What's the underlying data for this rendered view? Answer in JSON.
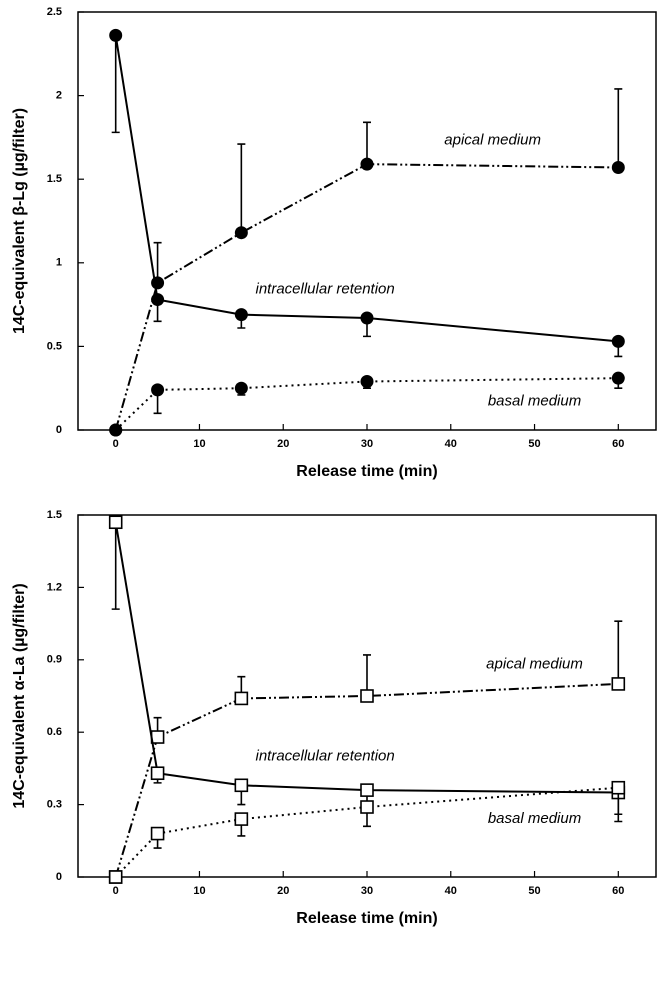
{
  "chart_data": [
    {
      "type": "line",
      "y_label": "14C-equivalent β-Lg (µg/filter)",
      "x_label": "Release time (min)",
      "x": [
        0,
        5,
        15,
        30,
        60
      ],
      "xlim": [
        -4.5,
        64.5
      ],
      "xticks": [
        0,
        10,
        20,
        30,
        40,
        50,
        60
      ],
      "ylim": [
        0,
        2.5
      ],
      "yticks": [
        0,
        0.5,
        1,
        1.5,
        2,
        2.5
      ],
      "marker": "circle-filled",
      "series": [
        {
          "name": "apical medium",
          "color": "#000000",
          "dash": "dash-dot-dot",
          "error_direction": "up",
          "values": [
            0,
            0.88,
            1.18,
            1.59,
            1.57
          ],
          "errors": [
            null,
            0.24,
            0.53,
            0.25,
            0.47
          ]
        },
        {
          "name": "intracellular retention",
          "color": "#000000",
          "dash": "solid",
          "error_direction": "down",
          "values": [
            2.36,
            0.78,
            0.69,
            0.67,
            0.53
          ],
          "errors": [
            0.58,
            0.13,
            0.08,
            0.11,
            0.09
          ]
        },
        {
          "name": "basal medium",
          "color": "#000000",
          "dash": "dotted",
          "error_direction": "down",
          "values": [
            0,
            0.24,
            0.25,
            0.29,
            0.31
          ],
          "errors": [
            null,
            0.14,
            0.04,
            0.04,
            0.06
          ]
        }
      ]
    },
    {
      "type": "line",
      "y_label": "14C-equivalent α-La (µg/filter)",
      "x_label": "Release time (min)",
      "x": [
        0,
        5,
        15,
        30,
        60
      ],
      "xlim": [
        -4.5,
        64.5
      ],
      "xticks": [
        0,
        10,
        20,
        30,
        40,
        50,
        60
      ],
      "ylim": [
        0,
        1.5
      ],
      "yticks": [
        0,
        0.3,
        0.6,
        0.9,
        1.2,
        1.5
      ],
      "marker": "square-open",
      "series": [
        {
          "name": "apical medium",
          "color": "#000000",
          "dash": "dash-dot-dot",
          "error_direction": "up",
          "values": [
            0,
            0.58,
            0.74,
            0.75,
            0.8
          ],
          "errors": [
            null,
            0.08,
            0.09,
            0.17,
            0.26
          ]
        },
        {
          "name": "intracellular retention",
          "color": "#000000",
          "dash": "solid",
          "error_direction": "down",
          "values": [
            1.47,
            0.43,
            0.38,
            0.36,
            0.35
          ],
          "errors": [
            0.36,
            0.04,
            0.08,
            0.08,
            0.09
          ]
        },
        {
          "name": "basal medium",
          "color": "#000000",
          "dash": "dotted",
          "error_direction": "down",
          "values": [
            0,
            0.18,
            0.24,
            0.29,
            0.37
          ],
          "errors": [
            null,
            0.06,
            0.07,
            0.08,
            0.14
          ]
        }
      ]
    }
  ]
}
